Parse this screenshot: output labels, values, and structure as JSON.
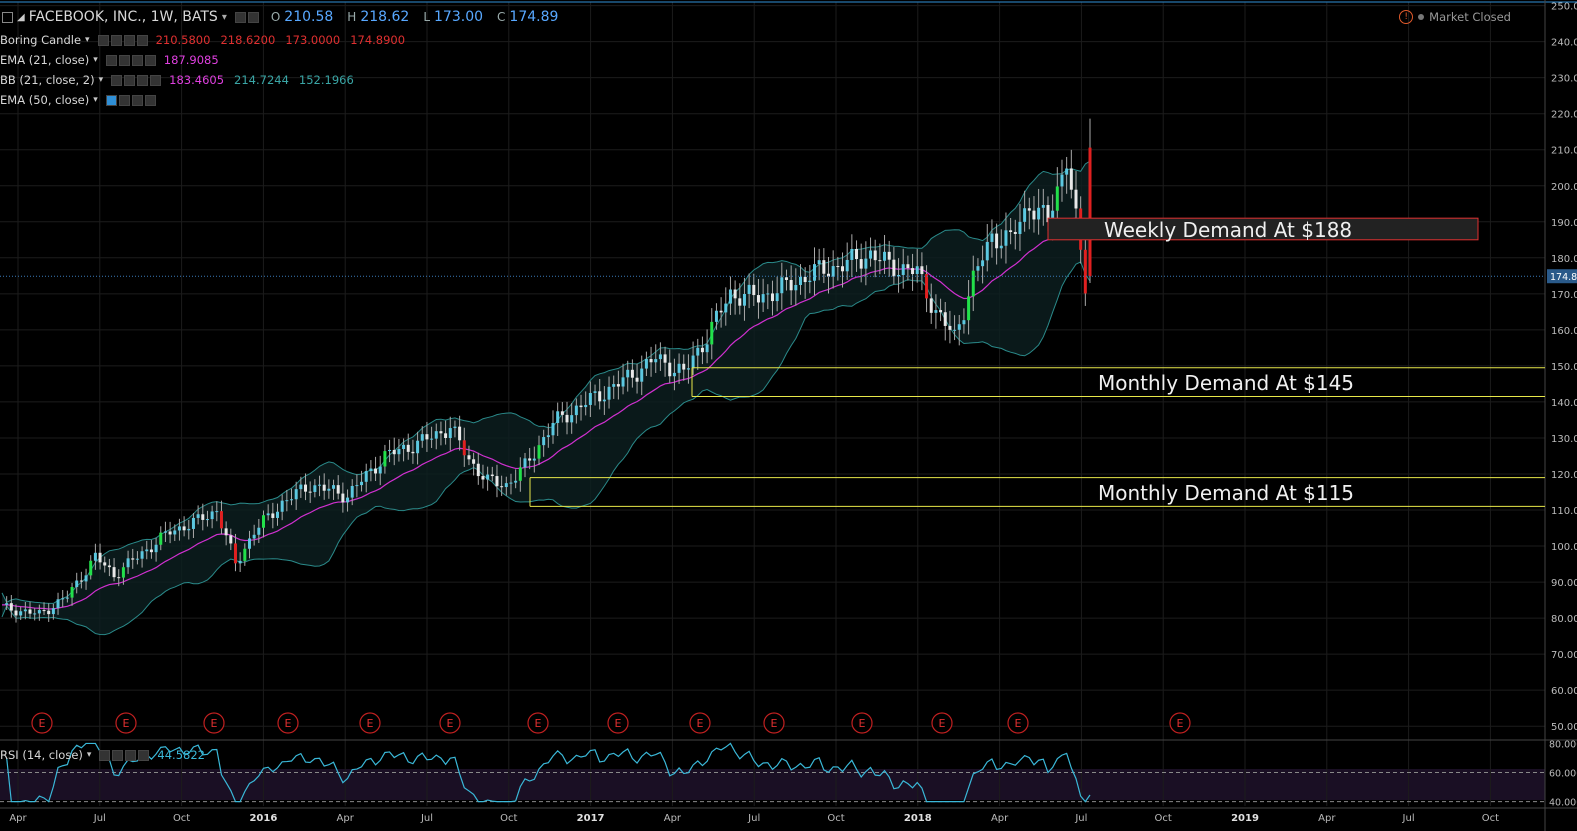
{
  "header": {
    "symbol": "FACEBOOK, INC., 1W, BATS",
    "ohlc_labels": {
      "o": "O",
      "h": "H",
      "l": "L",
      "c": "C"
    },
    "ohlc_values": {
      "o": "210.58",
      "h": "218.62",
      "l": "173.00",
      "c": "174.89"
    },
    "market_status": "Market Closed"
  },
  "indicators": [
    {
      "name": "Boring Candle",
      "values": [
        "210.5800",
        "218.6200",
        "173.0000",
        "174.8900"
      ],
      "color": "#e03030"
    },
    {
      "name": "EMA (21, close)",
      "values": [
        "187.9085"
      ],
      "color": "#e040e0"
    },
    {
      "name": "BB (21, close, 2)",
      "values": [
        "183.4605",
        "214.7244",
        "152.1966"
      ],
      "colors": [
        "#e040e0",
        "#3aa6a6",
        "#3aa6a6"
      ]
    },
    {
      "name": "EMA (50, close)",
      "values": [],
      "color": "#2f8fd6"
    }
  ],
  "rsi_header": {
    "name": "RSI (14, close)",
    "value": "44.5822",
    "color": "#3ab8d8"
  },
  "chart_data": {
    "type": "candlestick",
    "title": "FACEBOOK, INC., 1W, BATS",
    "ylim": [
      47,
      251
    ],
    "y_ticks": [
      "50.00",
      "60.00",
      "70.00",
      "80.00",
      "90.00",
      "100.00",
      "110.00",
      "120.00",
      "130.00",
      "140.00",
      "150.00",
      "160.00",
      "170.00",
      "180.00",
      "190.00",
      "200.00",
      "210.00",
      "220.00",
      "230.00",
      "240.00",
      "250.00"
    ],
    "last_price": "174.89",
    "x_tick_labels": [
      "Apr",
      "Jul",
      "Oct",
      "2016",
      "Apr",
      "Jul",
      "Oct",
      "2017",
      "Apr",
      "Jul",
      "Oct",
      "2018",
      "Apr",
      "Jul",
      "Oct",
      "2019",
      "Apr",
      "Jul",
      "Oct"
    ],
    "earnings_marker": "E",
    "annotations": [
      {
        "text": "Weekly Demand At $188",
        "low": 185,
        "high": 191,
        "color": "#e03030"
      },
      {
        "text": "Monthly Demand At $145",
        "low": 141.5,
        "high": 149.5,
        "color": "#e8e84a"
      },
      {
        "text": "Monthly Demand At $115",
        "low": 111,
        "high": 119,
        "color": "#e8e84a"
      }
    ],
    "close_anchors": [
      [
        0,
        83
      ],
      [
        8,
        81
      ],
      [
        14,
        86
      ],
      [
        20,
        97
      ],
      [
        24,
        92
      ],
      [
        30,
        98
      ],
      [
        36,
        104
      ],
      [
        42,
        107
      ],
      [
        46,
        110
      ],
      [
        50,
        95
      ],
      [
        54,
        104
      ],
      [
        60,
        112
      ],
      [
        66,
        117
      ],
      [
        74,
        114
      ],
      [
        82,
        125
      ],
      [
        90,
        129
      ],
      [
        96,
        133
      ],
      [
        100,
        124
      ],
      [
        104,
        118
      ],
      [
        108,
        117
      ],
      [
        112,
        122
      ],
      [
        118,
        134
      ],
      [
        124,
        139
      ],
      [
        132,
        145
      ],
      [
        140,
        152
      ],
      [
        146,
        148
      ],
      [
        150,
        156
      ],
      [
        156,
        170
      ],
      [
        162,
        169
      ],
      [
        168,
        172
      ],
      [
        174,
        176
      ],
      [
        180,
        178
      ],
      [
        186,
        181
      ],
      [
        190,
        178
      ],
      [
        196,
        176
      ],
      [
        200,
        165
      ],
      [
        204,
        158
      ],
      [
        208,
        174
      ],
      [
        212,
        186
      ],
      [
        216,
        185
      ],
      [
        220,
        195
      ],
      [
        224,
        190
      ],
      [
        228,
        208
      ],
      [
        232,
        172
      ],
      [
        233,
        174.89
      ]
    ],
    "rsi": {
      "ylim": [
        37,
        81
      ],
      "levels": [
        40,
        60
      ],
      "ticks": [
        "40.0000",
        "60.0000",
        "80.0000"
      ]
    }
  }
}
